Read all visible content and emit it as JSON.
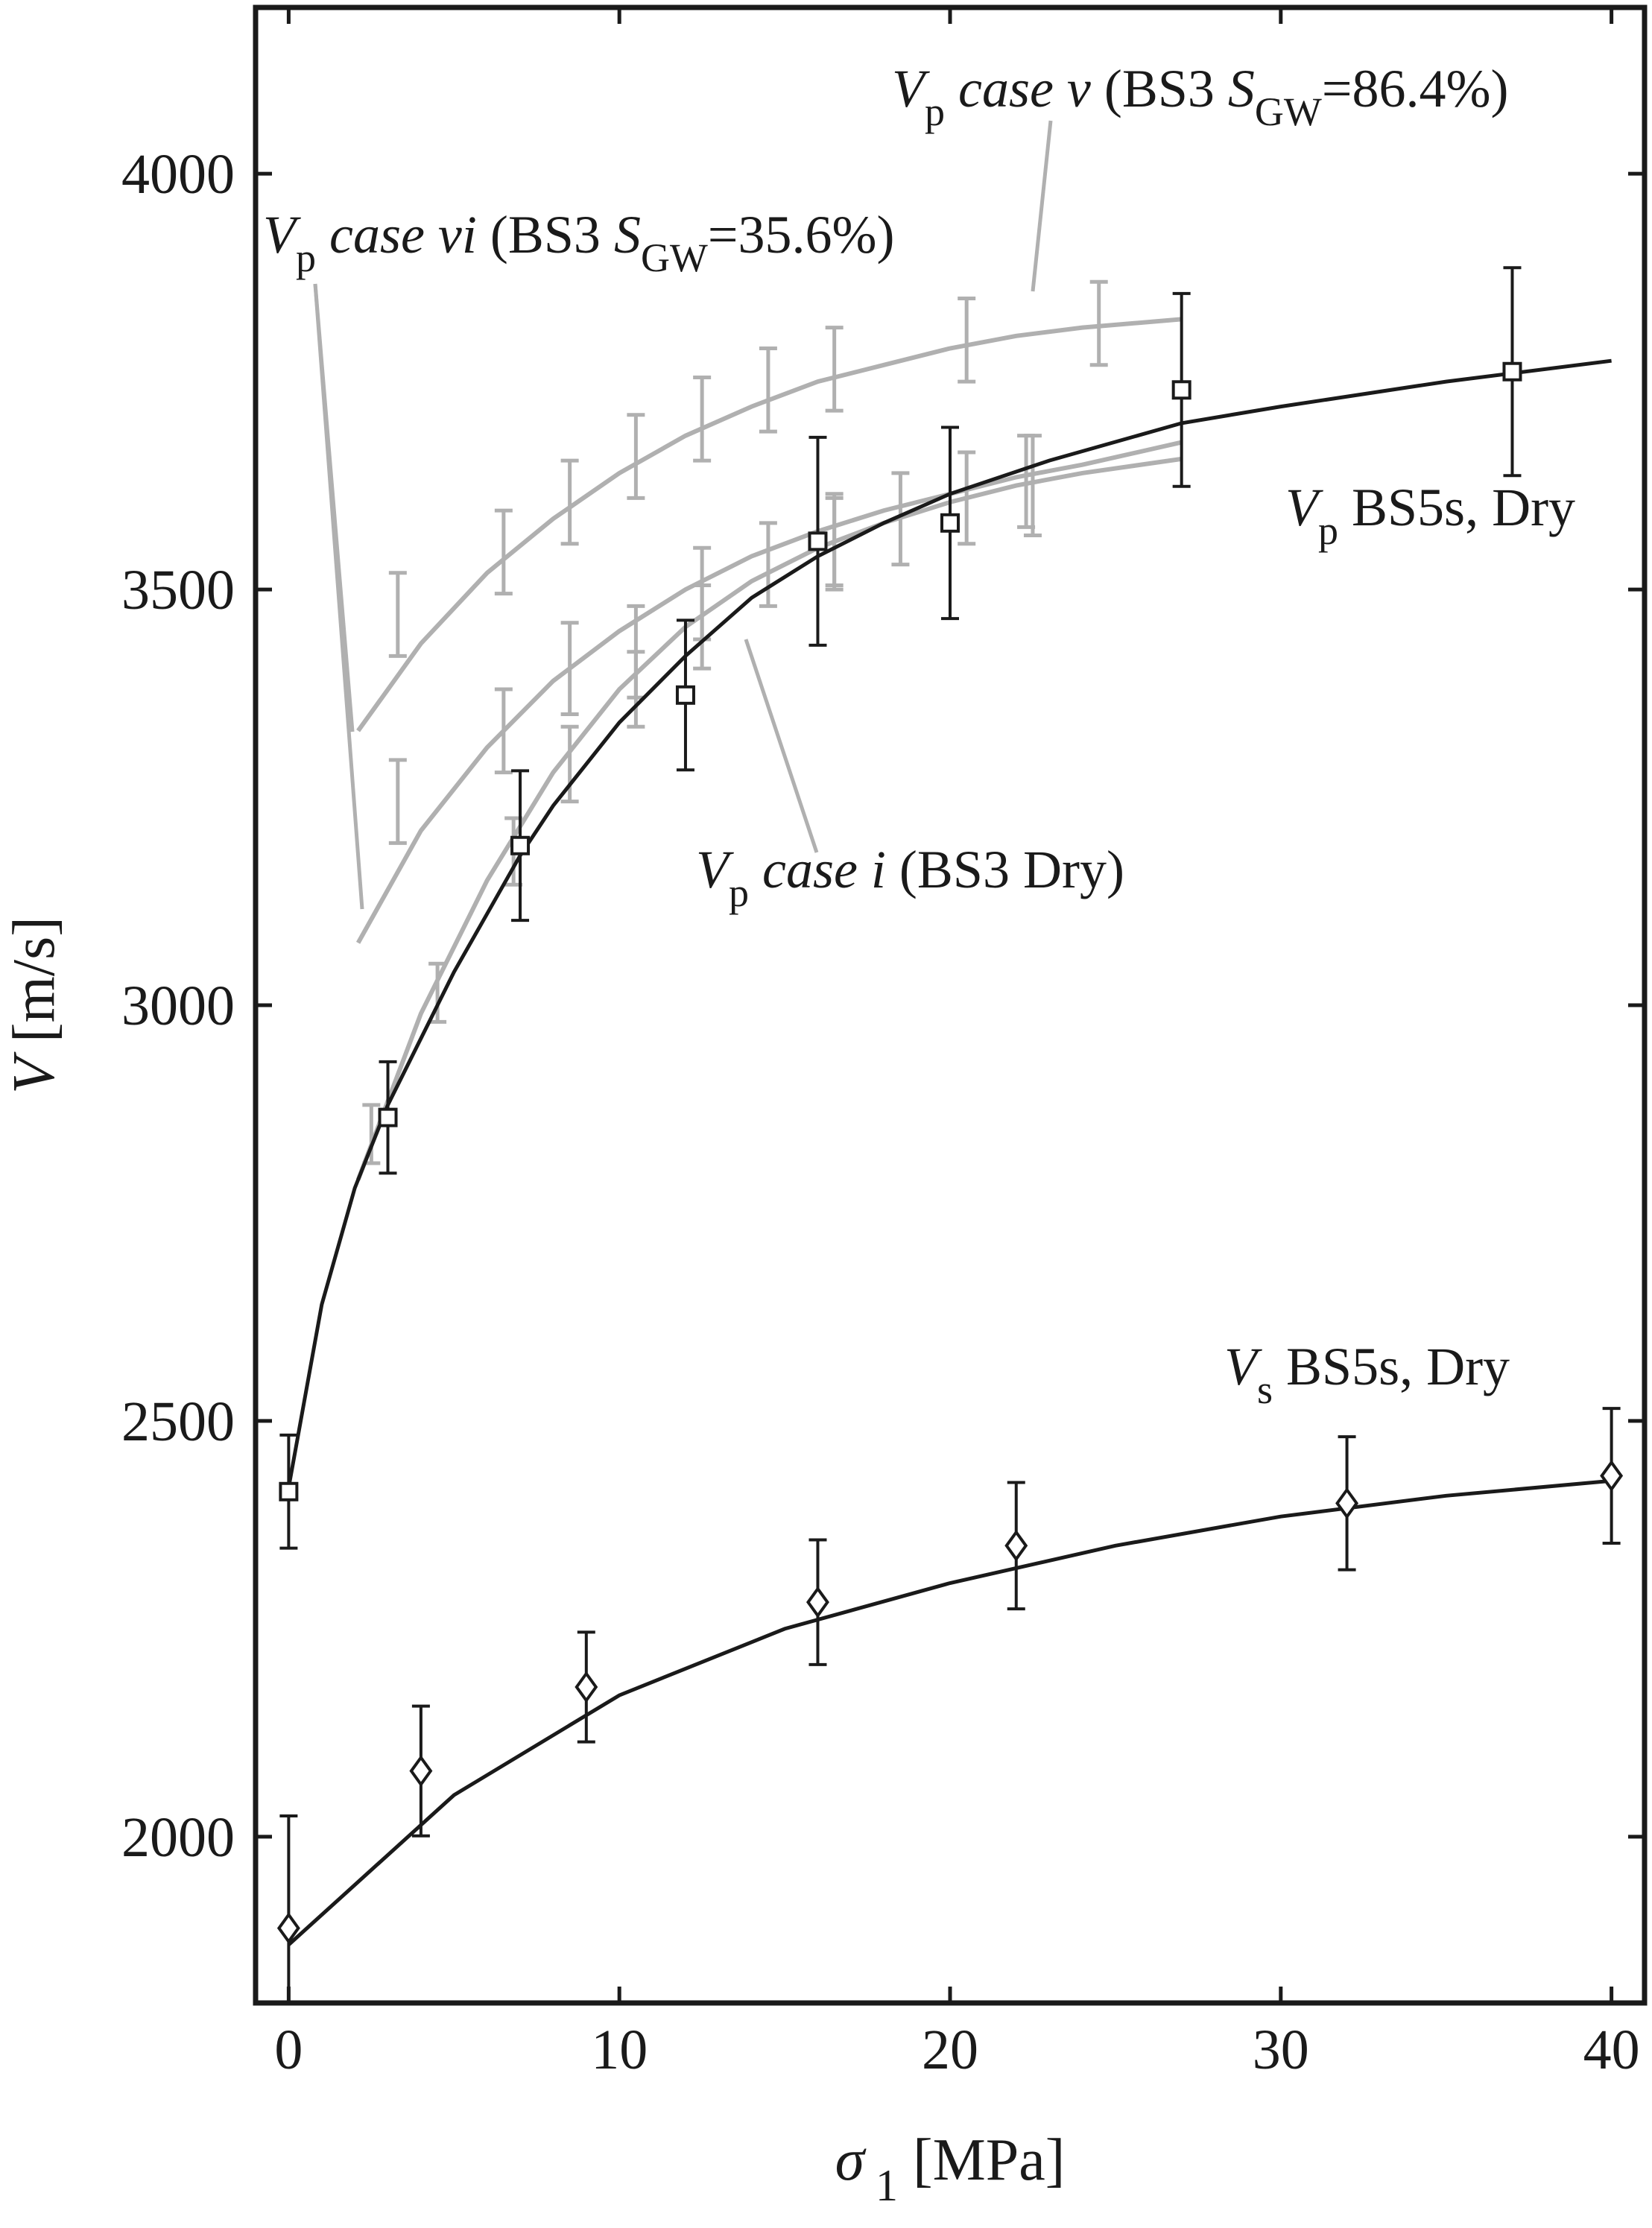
{
  "chart_data": {
    "type": "scatter",
    "xlim": [
      -1,
      41
    ],
    "ylim": [
      1800,
      4200
    ],
    "xticks": [
      0,
      10,
      20,
      30,
      40
    ],
    "yticks": [
      2000,
      2500,
      3000,
      3500,
      4000
    ],
    "x_label": [
      {
        "text": "σ",
        "italic": true
      },
      {
        "text": " 1",
        "sub": true
      },
      {
        "text": " [MPa]"
      }
    ],
    "y_label": [
      {
        "text": "V",
        "italic": true
      },
      {
        "text": " [m/s]"
      }
    ],
    "series": [
      {
        "color": "#1a1a1a",
        "marker": "square",
        "x": [
          0,
          3,
          7,
          12,
          16,
          20,
          27,
          37
        ],
        "values": [
          2415,
          2865,
          3192,
          3373,
          3558,
          3580,
          3740,
          3762
        ],
        "errors": [
          68,
          67,
          90,
          90,
          125,
          115,
          116,
          125
        ]
      },
      {
        "color": "#1a1a1a",
        "marker": "diamond",
        "x": [
          0,
          4,
          9,
          16,
          22,
          32,
          40
        ],
        "values": [
          1890,
          2079,
          2180,
          2282,
          2350,
          2401,
          2434
        ],
        "errors": [
          135,
          78,
          66,
          75,
          76,
          80,
          81
        ]
      },
      {
        "color": "#b0b0b0",
        "marker": "none",
        "x": [
          3.3,
          6.5,
          8.5,
          10.5,
          12.5,
          14.5,
          16.5,
          20.5,
          24.5
        ],
        "values": [
          3470,
          3545,
          3605,
          3660,
          3705,
          3740,
          3765,
          3800,
          3820
        ],
        "errors": [
          50,
          50,
          50,
          50,
          50,
          50,
          50,
          50,
          50
        ]
      },
      {
        "color": "#b0b0b0",
        "marker": "none",
        "x": [
          3.3,
          6.5,
          8.5,
          10.5,
          12.5,
          16.5,
          22.3
        ],
        "values": [
          3245,
          3330,
          3405,
          3425,
          3495,
          3560,
          3630
        ],
        "errors": [
          50,
          50,
          55,
          55,
          55,
          55,
          55
        ]
      },
      {
        "color": "#b0b0b0",
        "marker": "none",
        "x": [
          2.5,
          4.5,
          6.8,
          8.5,
          10.5,
          12.5,
          14.5,
          16.5,
          18.5,
          20.5,
          22.5
        ],
        "values": [
          2845,
          3015,
          3185,
          3290,
          3380,
          3455,
          3530,
          3555,
          3585,
          3610,
          3625
        ],
        "errors": [
          35,
          35,
          40,
          45,
          45,
          50,
          50,
          55,
          55,
          55,
          60
        ]
      }
    ],
    "fits": [
      {
        "color": "#1a1a1a",
        "x": [
          0,
          1,
          2,
          3,
          4,
          5,
          6,
          7,
          8,
          10,
          12,
          14,
          16,
          18,
          20,
          23,
          27,
          30,
          35,
          40
        ],
        "values": [
          2420,
          2640,
          2780,
          2880,
          2960,
          3040,
          3110,
          3180,
          3240,
          3340,
          3420,
          3490,
          3540,
          3580,
          3615,
          3655,
          3700,
          3720,
          3750,
          3775
        ]
      },
      {
        "color": "#1a1a1a",
        "x": [
          0,
          5,
          10,
          15,
          20,
          25,
          30,
          35,
          40
        ],
        "values": [
          1870,
          2050,
          2170,
          2250,
          2305,
          2350,
          2385,
          2410,
          2428
        ]
      },
      {
        "color": "#b0b0b0",
        "x": [
          2.1,
          4,
          6,
          8,
          10,
          12,
          14,
          16,
          18,
          20,
          22,
          24,
          27
        ],
        "values": [
          3330,
          3435,
          3520,
          3585,
          3640,
          3685,
          3720,
          3750,
          3770,
          3790,
          3805,
          3815,
          3825
        ]
      },
      {
        "color": "#b0b0b0",
        "x": [
          2.1,
          4,
          6,
          8,
          10,
          12,
          14,
          16,
          18,
          20,
          22,
          24,
          27
        ],
        "values": [
          3075,
          3210,
          3310,
          3390,
          3450,
          3500,
          3540,
          3570,
          3595,
          3615,
          3635,
          3650,
          3677
        ]
      },
      {
        "color": "#b0b0b0",
        "x": [
          2.1,
          4,
          6,
          8,
          10,
          12,
          14,
          16,
          18,
          20,
          22,
          24,
          27
        ],
        "values": [
          2790,
          2990,
          3150,
          3280,
          3380,
          3455,
          3510,
          3550,
          3580,
          3605,
          3625,
          3640,
          3657
        ]
      }
    ],
    "annotations": [
      [
        {
          "text": "V",
          "italic": true
        },
        {
          "text": "p",
          "sub": true
        },
        {
          "text": " case v",
          "italic": true
        },
        {
          "text": " (BS3 "
        },
        {
          "text": "S",
          "italic": true
        },
        {
          "text": "GW",
          "sub": true
        },
        {
          "text": "=86.4%)"
        }
      ],
      [
        {
          "text": "V",
          "italic": true
        },
        {
          "text": "p",
          "sub": true
        },
        {
          "text": " case vi",
          "italic": true
        },
        {
          "text": " (BS3 "
        },
        {
          "text": "S",
          "italic": true
        },
        {
          "text": "GW",
          "sub": true
        },
        {
          "text": "=35.6%)"
        }
      ],
      [
        {
          "text": "V",
          "italic": true
        },
        {
          "text": "p",
          "sub": true
        },
        {
          "text": " case i",
          "italic": true
        },
        {
          "text": " (BS3 Dry)"
        }
      ],
      [
        {
          "text": "V",
          "italic": true
        },
        {
          "text": "p",
          "sub": true
        },
        {
          "text": " BS5s, Dry"
        }
      ],
      [
        {
          "text": "V",
          "italic": true
        },
        {
          "text": "s",
          "sub": true
        },
        {
          "text": " BS5s, Dry"
        }
      ]
    ]
  }
}
